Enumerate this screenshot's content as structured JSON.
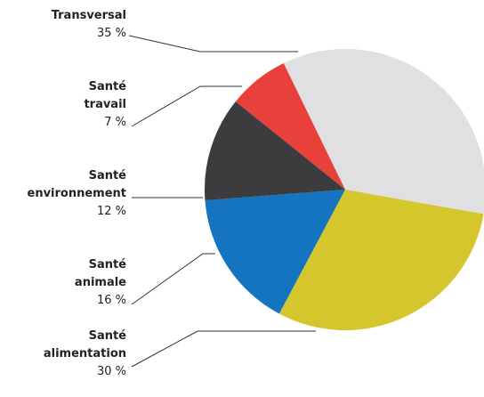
{
  "chart_data": {
    "type": "pie",
    "categories": [
      "Transversal",
      "Santé alimentation",
      "Santé animale",
      "Santé environnement",
      "Santé travail"
    ],
    "values": [
      35,
      30,
      16,
      12,
      7
    ],
    "value_labels": [
      "35 %",
      "30 %",
      "16 %",
      "12 %",
      "7 %"
    ],
    "colors": [
      "#e0e0e2",
      "#d4c62c",
      "#1474bf",
      "#3c3c3e",
      "#e8403a"
    ]
  }
}
